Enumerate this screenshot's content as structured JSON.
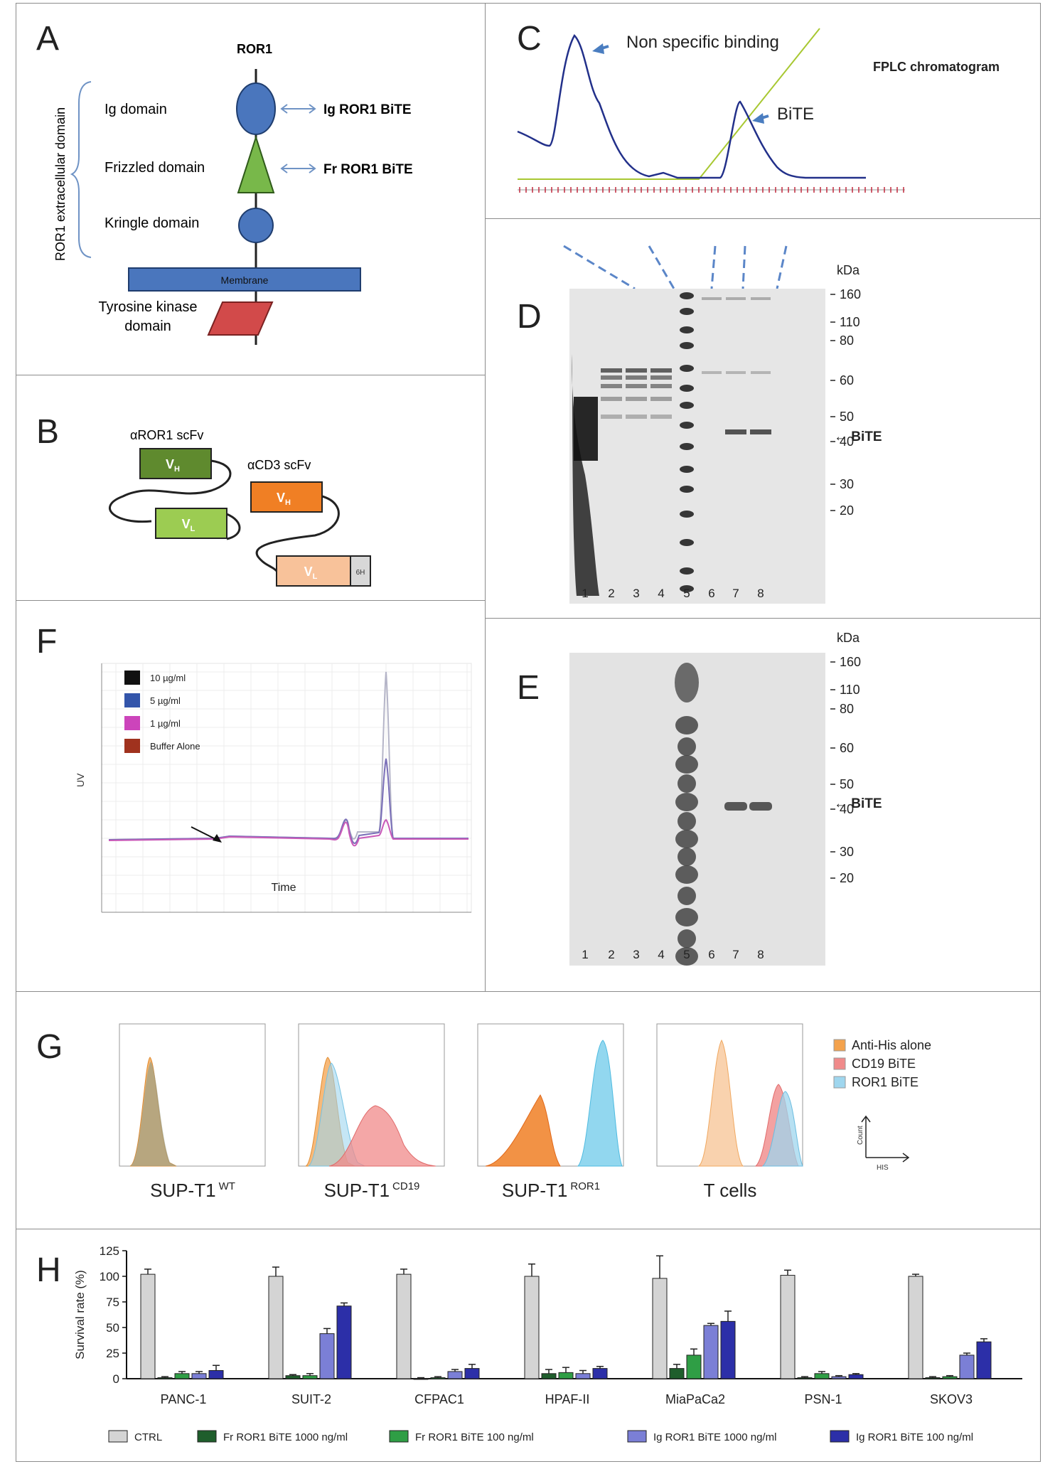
{
  "panelA": {
    "letter": "A",
    "title": "ROR1",
    "extracellular": "ROR1 extracellular domain",
    "ig": "Ig domain",
    "frizzled": "Frizzled domain",
    "kringle": "Kringle domain",
    "membrane": "Membrane",
    "tk1": "Tyrosine kinase",
    "tk2": "domain",
    "igBite": "Ig ROR1 BiTE",
    "frBite": "Fr ROR1 BiTE"
  },
  "panelB": {
    "letter": "B",
    "ror1Scfv": "αROR1 scFv",
    "cd3Scfv": "αCD3 scFv",
    "vh": "V",
    "vhSub": "H",
    "vl": "V",
    "vlSub": "L",
    "tag": "6H"
  },
  "panelC": {
    "letter": "C",
    "nonSpecific": "Non specific binding",
    "bite": "BiTE",
    "fplc": "FPLC chromatogram"
  },
  "panelD": {
    "letter": "D",
    "kda": "kDa",
    "markers": [
      "160",
      "110",
      "80",
      "60",
      "50",
      "40",
      "30",
      "20"
    ],
    "lanes": [
      "1",
      "2",
      "3",
      "4",
      "5",
      "6",
      "7",
      "8"
    ],
    "biteLabel": "← BiTE"
  },
  "panelE": {
    "letter": "E",
    "kda": "kDa",
    "markers": [
      "160",
      "110",
      "80",
      "60",
      "50",
      "40",
      "30",
      "20"
    ],
    "lanes": [
      "1",
      "2",
      "3",
      "4",
      "5",
      "6",
      "7",
      "8"
    ],
    "biteLabel": "← BiTE"
  },
  "panelF": {
    "letter": "F",
    "ylabel": "UV",
    "xlabel": "Time",
    "legend": [
      {
        "label": "10 µg/ml",
        "color": "#111111"
      },
      {
        "label": "5 µg/ml",
        "color": "#3355aa"
      },
      {
        "label": "1 µg/ml",
        "color": "#cc44bb"
      },
      {
        "label": "Buffer Alone",
        "color": "#a0321e"
      }
    ]
  },
  "panelG": {
    "letter": "G",
    "cells": [
      {
        "name": "SUP-T1",
        "sup": "WT"
      },
      {
        "name": "SUP-T1",
        "sup": "CD19"
      },
      {
        "name": "SUP-T1",
        "sup": "ROR1"
      },
      {
        "name": "T cells",
        "sup": ""
      }
    ],
    "legend": [
      {
        "label": "Anti-His alone",
        "color": "#f4a24c"
      },
      {
        "label": "CD19 BiTE",
        "color": "#f08a8a"
      },
      {
        "label": "ROR1 BiTE",
        "color": "#9fd6ee"
      }
    ],
    "axisCount": "Count",
    "axisHis": "HIS"
  },
  "panelH": {
    "letter": "H"
  },
  "chart_data": {
    "type": "bar",
    "title": "",
    "xlabel": "",
    "ylabel": "Survival rate (%)",
    "ylim": [
      0,
      125
    ],
    "yticks": [
      0,
      25,
      50,
      75,
      100,
      125
    ],
    "categories": [
      "PANC-1",
      "SUIT-2",
      "CFPAC1",
      "HPAF-II",
      "MiaPaCa2",
      "PSN-1",
      "SKOV3"
    ],
    "series": [
      {
        "name": "CTRL",
        "color": "#d4d4d4",
        "values": [
          102,
          100,
          102,
          100,
          98,
          101,
          100
        ],
        "errors": [
          5,
          9,
          5,
          12,
          22,
          5,
          2
        ]
      },
      {
        "name": "Fr ROR1 BiTE 1000 ng/ml",
        "color": "#1f5e2c",
        "values": [
          1,
          3,
          0,
          5,
          10,
          1,
          1
        ],
        "errors": [
          1,
          1,
          1,
          4,
          4,
          1,
          1
        ]
      },
      {
        "name": "Fr ROR1 BiTE 100 ng/ml",
        "color": "#2f9e45",
        "values": [
          5,
          3,
          1,
          6,
          23,
          5,
          2
        ],
        "errors": [
          2,
          2,
          1,
          5,
          6,
          2,
          1
        ]
      },
      {
        "name": "Ig ROR1 BiTE 1000 ng/ml",
        "color": "#7b7fd6",
        "values": [
          5,
          44,
          7,
          5,
          52,
          2,
          23
        ],
        "errors": [
          2,
          5,
          2,
          3,
          2,
          1,
          2
        ]
      },
      {
        "name": "Ig ROR1 BiTE 100 ng/ml",
        "color": "#2c2fa8",
        "values": [
          8,
          71,
          10,
          10,
          56,
          4,
          36
        ],
        "errors": [
          5,
          3,
          4,
          2,
          10,
          1,
          3
        ]
      }
    ]
  }
}
